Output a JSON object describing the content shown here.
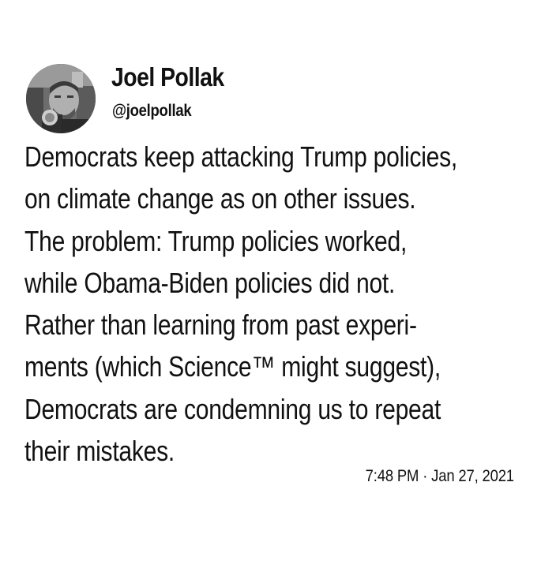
{
  "tweet": {
    "display_name": "Joel Pollak",
    "handle": "@joelpollak",
    "lines": [
      "Democrats keep attacking Trump policies,",
      "on climate change as on other issues.",
      "The problem: Trump policies worked,",
      "while Obama-Biden policies did not.",
      "Rather than learning from past experi-",
      "ments (which Science™ might suggest),",
      "Democrats are condemning us to repeat",
      "their mistakes."
    ],
    "timestamp": "7:48 PM · Jan 27, 2021"
  },
  "icons": {
    "avatar": "profile-photo-avatar"
  },
  "colors": {
    "background": "#ffffff",
    "text": "#111111"
  }
}
